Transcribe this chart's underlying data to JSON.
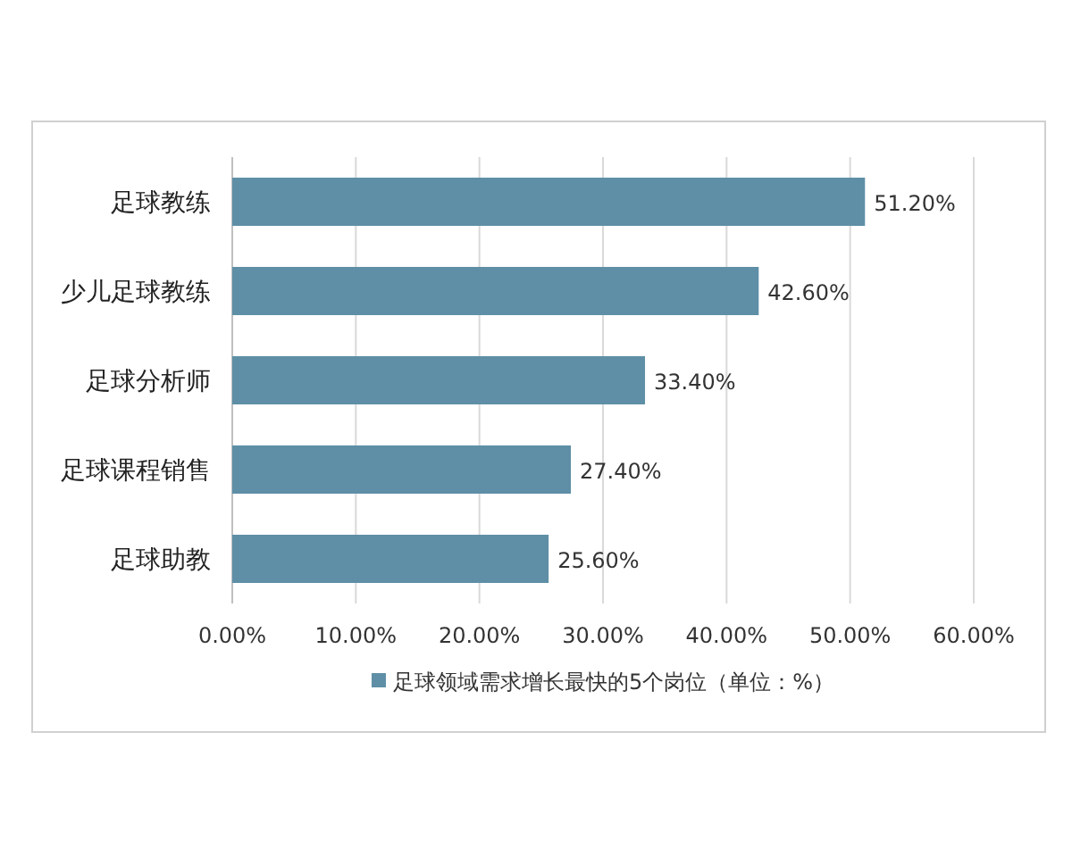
{
  "chart_data": {
    "type": "bar",
    "orientation": "horizontal",
    "categories": [
      "足球教练",
      "少儿足球教练",
      "足球分析师",
      "足球课程销售",
      "足球助教"
    ],
    "series": [
      {
        "name": "足球领域需求增长最快的5个岗位（单位：%）",
        "color": "#5e8fa6",
        "values": [
          51.2,
          42.6,
          33.4,
          27.4,
          25.6
        ],
        "value_labels": [
          "51.20%",
          "42.60%",
          "33.40%",
          "27.40%",
          "25.60%"
        ]
      }
    ],
    "xlim": [
      0,
      60
    ],
    "xticks": [
      {
        "value": 0,
        "label": "0.00%"
      },
      {
        "value": 10,
        "label": "10.00%"
      },
      {
        "value": 20,
        "label": "20.00%"
      },
      {
        "value": 30,
        "label": "30.00%"
      },
      {
        "value": 40,
        "label": "40.00%"
      },
      {
        "value": 50,
        "label": "50.00%"
      },
      {
        "value": 60,
        "label": "60.00%"
      }
    ],
    "grid": "x",
    "legend": "bottom"
  }
}
